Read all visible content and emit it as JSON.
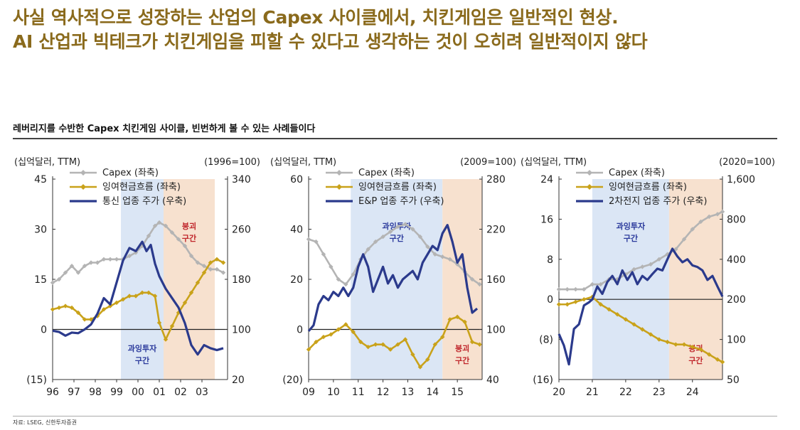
{
  "header": {
    "title_line1": "사실 역사적으로 성장하는 산업의 Capex 사이클에서, 치킨게임은 일반적인 현상.",
    "title_line2": "AI 산업과 빅테크가 치킨게임을 피할 수 있다고 생각하는 것이 오히려 일반적이지 않다",
    "subtitle": "레버리지를 수반한 Capex 치킨게임 사이클, 빈번하게 볼 수 있는 사례들이다",
    "source": "자료: LSEG, 신한투자증권"
  },
  "colors": {
    "capex": "#b4b4b4",
    "fcf": "#c9a21a",
    "stock": "#2b3a8c",
    "overinvest_zone": "#dbe6f5",
    "collapse_zone": "#f7e1cf",
    "overinvest_text": "#2b3a9c",
    "collapse_text": "#c0262b"
  },
  "chart_data": [
    {
      "type": "line",
      "left_unit": "(십억달러, TTM)",
      "right_unit": "(1996=100)",
      "x_ticks": [
        "96",
        "97",
        "98",
        "99",
        "00",
        "01",
        "02",
        "03"
      ],
      "xlim": [
        1996.0,
        2004.2
      ],
      "left_ticks": [
        "45",
        "30",
        "15",
        "0",
        "(15)"
      ],
      "left_ylim": [
        -15,
        45
      ],
      "right_ticks": [
        "340",
        "260",
        "180",
        "100",
        "20"
      ],
      "right_ylim": [
        20,
        340
      ],
      "legend": [
        "Capex (좌축)",
        "잉여현금흐름 (좌축)",
        "통신 업종 주가 (우축)"
      ],
      "zones": [
        {
          "label_lines": [
            "과잉투자",
            "구간"
          ],
          "type": "overinvest",
          "x": [
            1999.2,
            2001.2
          ],
          "label_pos": "bottom"
        },
        {
          "label_lines": [
            "붕괴",
            "구간"
          ],
          "type": "collapse",
          "x": [
            2001.2,
            2003.6
          ],
          "label_pos": "top"
        }
      ],
      "series": [
        {
          "name": "Capex (좌축)",
          "axis": "left",
          "marker": "diamond",
          "x": [
            1996.0,
            1996.3,
            1996.6,
            1996.9,
            1997.2,
            1997.5,
            1997.8,
            1998.1,
            1998.4,
            1998.7,
            1999.0,
            1999.3,
            1999.6,
            1999.9,
            2000.2,
            2000.5,
            2000.8,
            2001.0,
            2001.3,
            2001.6,
            2001.9,
            2002.2,
            2002.5,
            2002.8,
            2003.1,
            2003.4,
            2003.7,
            2004.0
          ],
          "y": [
            14,
            15,
            17,
            19,
            17,
            19,
            20,
            20,
            21,
            21,
            21,
            21,
            22,
            23,
            25,
            28,
            31,
            32,
            31,
            29,
            27,
            25,
            22,
            20,
            19,
            18,
            18,
            17
          ]
        },
        {
          "name": "잉여현금흐름 (좌축)",
          "axis": "left",
          "marker": "diamond",
          "x": [
            1996.0,
            1996.3,
            1996.6,
            1996.9,
            1997.2,
            1997.5,
            1997.8,
            1998.1,
            1998.4,
            1998.7,
            1999.0,
            1999.3,
            1999.6,
            1999.9,
            2000.2,
            2000.5,
            2000.8,
            2001.0,
            2001.3,
            2001.6,
            2001.9,
            2002.2,
            2002.5,
            2002.8,
            2003.1,
            2003.4,
            2003.7,
            2004.0
          ],
          "y": [
            6,
            6.5,
            7,
            6.5,
            5,
            3,
            3,
            4,
            6,
            7,
            8,
            9,
            10,
            10,
            11,
            11,
            10,
            2,
            -3,
            1,
            5,
            8,
            11,
            14,
            17,
            20,
            21,
            20
          ]
        },
        {
          "name": "통신 업종 주가 (우축)",
          "axis": "right",
          "marker": "none",
          "x": [
            1996.0,
            1996.3,
            1996.6,
            1996.9,
            1997.2,
            1997.5,
            1997.8,
            1998.1,
            1998.4,
            1998.7,
            1999.0,
            1999.3,
            1999.6,
            1999.9,
            2000.2,
            2000.4,
            2000.6,
            2000.8,
            2001.0,
            2001.3,
            2001.6,
            2001.9,
            2002.2,
            2002.5,
            2002.8,
            2003.1,
            2003.4,
            2003.7,
            2004.0
          ],
          "y": [
            98,
            96,
            90,
            95,
            94,
            100,
            108,
            125,
            150,
            140,
            175,
            210,
            230,
            225,
            240,
            225,
            235,
            205,
            185,
            165,
            150,
            135,
            110,
            75,
            60,
            75,
            70,
            67,
            70
          ]
        }
      ]
    },
    {
      "type": "line",
      "left_unit": "(십억달러, TTM)",
      "right_unit": "(2009=100)",
      "x_ticks": [
        "09",
        "10",
        "11",
        "12",
        "13",
        "14",
        "15"
      ],
      "xlim": [
        2009.0,
        2016.0
      ],
      "left_ticks": [
        "60",
        "40",
        "20",
        "0",
        "(20)"
      ],
      "left_ylim": [
        -20,
        60
      ],
      "right_ticks": [
        "280",
        "220",
        "160",
        "100",
        "40"
      ],
      "right_ylim": [
        40,
        280
      ],
      "legend": [
        "Capex (좌축)",
        "잉여현금흐름 (좌축)",
        "E&P 업종 주가 (우축)"
      ],
      "zones": [
        {
          "label_lines": [
            "과잉투자",
            "구간"
          ],
          "type": "overinvest",
          "x": [
            2010.7,
            2014.4
          ],
          "label_pos": "top"
        },
        {
          "label_lines": [
            "붕괴",
            "구간"
          ],
          "type": "collapse",
          "x": [
            2014.4,
            2016.0
          ],
          "label_pos": "bottom"
        }
      ],
      "series": [
        {
          "name": "Capex (좌축)",
          "axis": "left",
          "marker": "diamond",
          "x": [
            2009.0,
            2009.3,
            2009.6,
            2009.9,
            2010.2,
            2010.5,
            2010.8,
            2011.1,
            2011.4,
            2011.7,
            2012.0,
            2012.3,
            2012.6,
            2012.9,
            2013.2,
            2013.5,
            2013.8,
            2014.1,
            2014.4,
            2014.7,
            2015.0,
            2015.3,
            2015.6,
            2015.9
          ],
          "y": [
            36,
            35,
            30,
            25,
            20,
            18,
            22,
            28,
            32,
            35,
            37,
            39,
            41,
            42,
            40,
            37,
            33,
            30,
            29,
            28,
            26,
            23,
            20,
            18
          ]
        },
        {
          "name": "잉여현금흐름 (좌축)",
          "axis": "left",
          "marker": "diamond",
          "x": [
            2009.0,
            2009.3,
            2009.6,
            2009.9,
            2010.2,
            2010.5,
            2010.8,
            2011.1,
            2011.4,
            2011.7,
            2012.0,
            2012.3,
            2012.6,
            2012.9,
            2013.2,
            2013.5,
            2013.8,
            2014.1,
            2014.4,
            2014.7,
            2015.0,
            2015.3,
            2015.6,
            2015.9
          ],
          "y": [
            -8,
            -5,
            -3,
            -2,
            0,
            2,
            -1,
            -5,
            -7,
            -6,
            -6,
            -8,
            -6,
            -4,
            -10,
            -15,
            -12,
            -6,
            -3,
            4,
            5,
            3,
            -5,
            -6
          ]
        },
        {
          "name": "E&P 업종 주가 (우축)",
          "axis": "right",
          "marker": "none",
          "x": [
            2009.0,
            2009.2,
            2009.4,
            2009.6,
            2009.8,
            2010.0,
            2010.2,
            2010.4,
            2010.6,
            2010.8,
            2011.0,
            2011.2,
            2011.4,
            2011.6,
            2011.8,
            2012.0,
            2012.2,
            2012.4,
            2012.6,
            2012.8,
            2013.0,
            2013.2,
            2013.4,
            2013.6,
            2013.8,
            2014.0,
            2014.2,
            2014.4,
            2014.6,
            2014.8,
            2015.0,
            2015.2,
            2015.4,
            2015.6,
            2015.8
          ],
          "y": [
            98,
            105,
            130,
            140,
            135,
            145,
            140,
            150,
            140,
            150,
            175,
            190,
            175,
            145,
            160,
            175,
            155,
            165,
            150,
            160,
            165,
            170,
            160,
            180,
            190,
            200,
            195,
            215,
            225,
            205,
            180,
            190,
            150,
            120,
            125
          ]
        }
      ]
    },
    {
      "type": "line",
      "left_unit": "(십억달러, TTM)",
      "right_unit": "(2020=100)",
      "x_ticks": [
        "20",
        "21",
        "22",
        "23",
        "24"
      ],
      "xlim": [
        2020.0,
        2024.9
      ],
      "left_ticks": [
        "24",
        "16",
        "8",
        "0",
        "(8)",
        "(16)"
      ],
      "left_ylim": [
        -16,
        24
      ],
      "right_ticks": [
        "1,600",
        "800",
        "400",
        "200",
        "100",
        "50"
      ],
      "right_ylim": [
        50,
        1600
      ],
      "right_scale": "log",
      "legend": [
        "Capex (좌축)",
        "잉여현금흐름 (좌축)",
        "2차전지 업종 주가 (우축)"
      ],
      "zones": [
        {
          "label_lines": [
            "과잉투자",
            "구간"
          ],
          "type": "overinvest",
          "x": [
            2021.0,
            2023.3
          ],
          "label_pos": "top"
        },
        {
          "label_lines": [
            "붕괴",
            "구간"
          ],
          "type": "collapse",
          "x": [
            2023.3,
            2024.9
          ],
          "label_pos": "bottom"
        }
      ],
      "series": [
        {
          "name": "Capex (좌축)",
          "axis": "left",
          "marker": "diamond",
          "x": [
            2020.0,
            2020.25,
            2020.5,
            2020.75,
            2021.0,
            2021.25,
            2021.5,
            2021.75,
            2022.0,
            2022.25,
            2022.5,
            2022.75,
            2023.0,
            2023.25,
            2023.5,
            2023.75,
            2024.0,
            2024.25,
            2024.5,
            2024.75,
            2024.9
          ],
          "y": [
            2,
            2,
            2,
            2,
            3,
            3,
            4,
            4,
            5,
            6,
            6.5,
            7,
            8,
            9,
            10,
            12,
            14,
            15.5,
            16.5,
            17,
            17.5
          ]
        },
        {
          "name": "잉여현금흐름 (좌축)",
          "axis": "left",
          "marker": "diamond",
          "x": [
            2020.0,
            2020.25,
            2020.5,
            2020.75,
            2021.0,
            2021.25,
            2021.5,
            2021.75,
            2022.0,
            2022.25,
            2022.5,
            2022.75,
            2023.0,
            2023.25,
            2023.5,
            2023.75,
            2024.0,
            2024.25,
            2024.5,
            2024.75,
            2024.9
          ],
          "y": [
            -1,
            -1,
            -0.5,
            0,
            0.5,
            -1,
            -2,
            -3,
            -4,
            -5,
            -6,
            -7,
            -8,
            -8.5,
            -9,
            -9,
            -9.5,
            -10,
            -11,
            -12,
            -12.5
          ]
        },
        {
          "name": "2차전지 업종 주가 (우축)",
          "axis": "right",
          "marker": "none",
          "x": [
            2020.0,
            2020.15,
            2020.3,
            2020.45,
            2020.6,
            2020.75,
            2020.9,
            2021.0,
            2021.15,
            2021.3,
            2021.45,
            2021.6,
            2021.75,
            2021.9,
            2022.05,
            2022.2,
            2022.35,
            2022.5,
            2022.65,
            2022.8,
            2022.95,
            2023.1,
            2023.25,
            2023.4,
            2023.55,
            2023.7,
            2023.85,
            2024.0,
            2024.15,
            2024.3,
            2024.45,
            2024.6,
            2024.75,
            2024.9
          ],
          "y": [
            110,
            90,
            65,
            120,
            130,
            180,
            190,
            200,
            250,
            220,
            270,
            300,
            260,
            330,
            280,
            320,
            260,
            300,
            280,
            310,
            340,
            330,
            400,
            480,
            420,
            380,
            400,
            360,
            350,
            330,
            280,
            300,
            250,
            210
          ]
        }
      ]
    }
  ]
}
